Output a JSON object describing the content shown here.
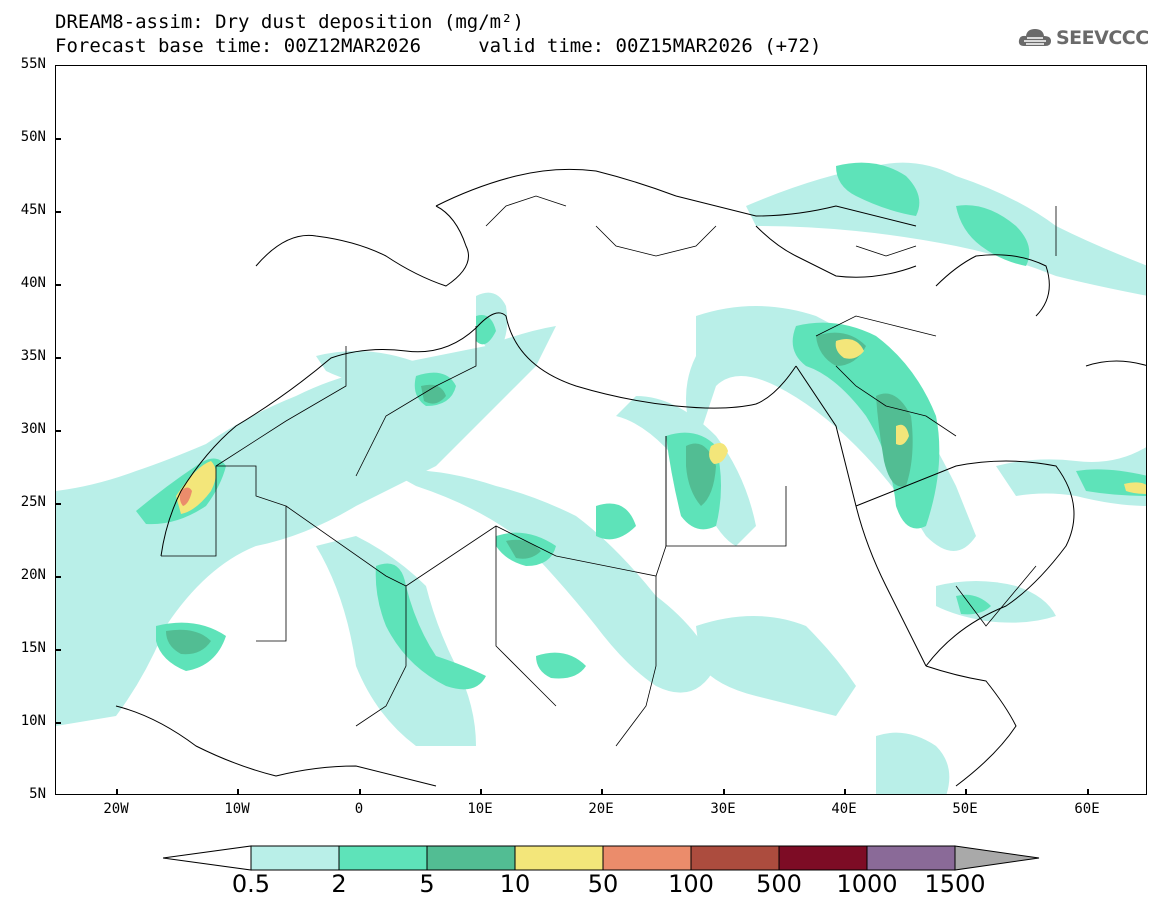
{
  "header": {
    "line1": "DREAM8-assim: Dry dust deposition (mg/m²)",
    "line2": "Forecast base time: 00Z12MAR2026     valid time: 00Z15MAR2026 (+72)",
    "logo_text": "SEEVCCC",
    "logo_icon": "cloud-icon"
  },
  "map": {
    "lat_labels": [
      "55N",
      "50N",
      "45N",
      "40N",
      "35N",
      "30N",
      "25N",
      "20N",
      "15N",
      "10N",
      "5N"
    ],
    "lon_labels": [
      "20W",
      "10W",
      "0",
      "10E",
      "20E",
      "30E",
      "40E",
      "50E",
      "60E"
    ],
    "land_color": "#ffffff",
    "border_color": "#000000"
  },
  "legend": {
    "thresholds": [
      "0.5",
      "2",
      "5",
      "10",
      "50",
      "100",
      "500",
      "1000",
      "1500"
    ],
    "colors": [
      "#b9efe8",
      "#5ee3b9",
      "#52bd93",
      "#f3e67a",
      "#eb8c6b",
      "#ac4c3e",
      "#7d0c25",
      "#8a6a98",
      "#a9a9a9"
    ],
    "under_color": "#ffffff",
    "over_color": "#a9a9a9"
  }
}
